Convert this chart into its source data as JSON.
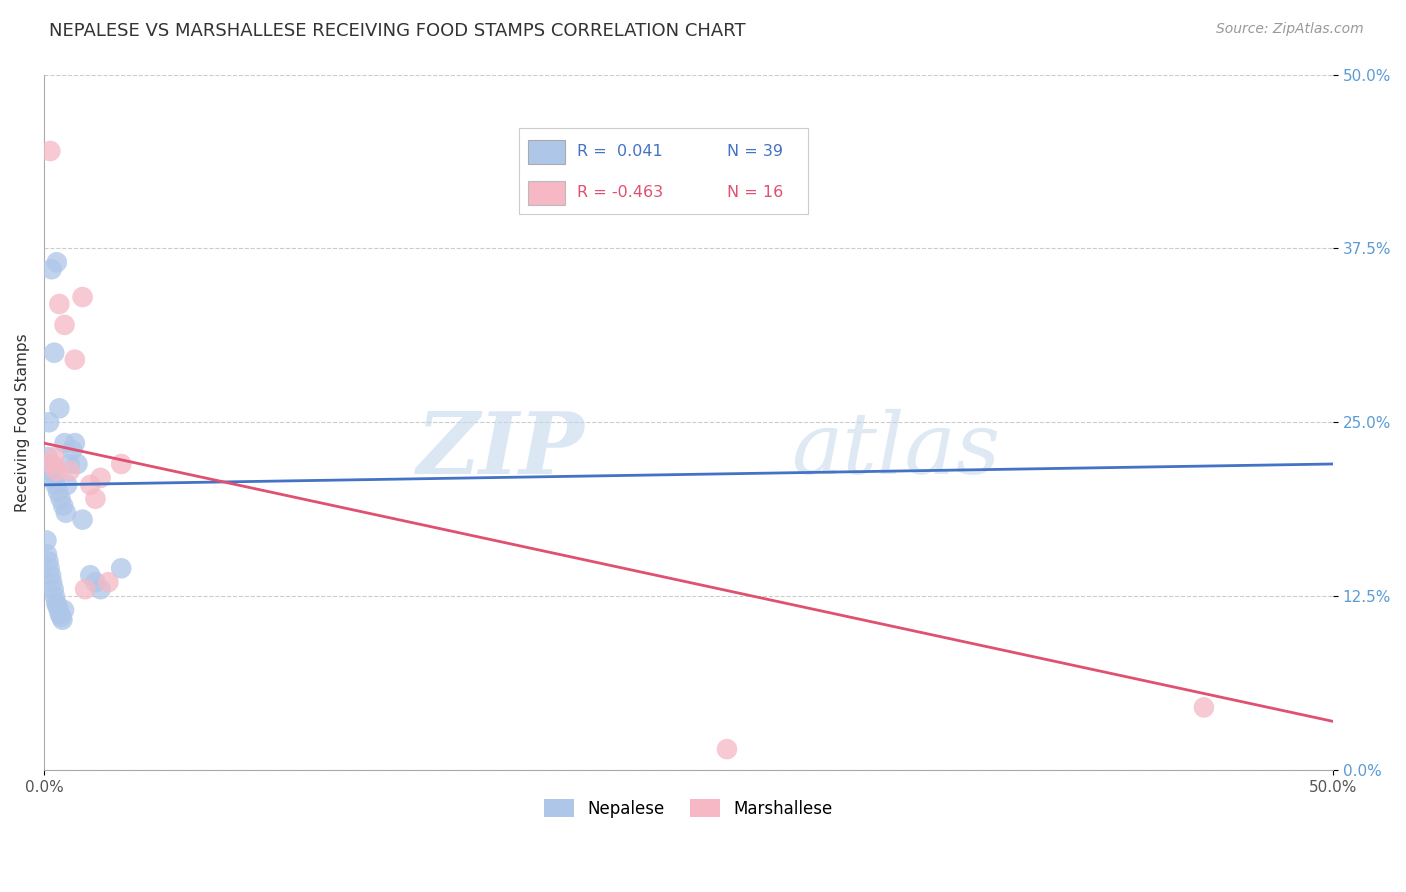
{
  "title": "NEPALESE VS MARSHALLESE RECEIVING FOOD STAMPS CORRELATION CHART",
  "source": "Source: ZipAtlas.com",
  "ylabel": "Receiving Food Stamps",
  "ytick_labels": [
    "0.0%",
    "12.5%",
    "25.0%",
    "37.5%",
    "50.0%"
  ],
  "ytick_values": [
    0.0,
    12.5,
    25.0,
    37.5,
    50.0
  ],
  "xmin": 0.0,
  "xmax": 50.0,
  "ymin": 0.0,
  "ymax": 50.0,
  "legend_r1": "R =  0.041",
  "legend_n1": "N = 39",
  "legend_r2": "R = -0.463",
  "legend_n2": "N = 16",
  "nepalese_x": [
    0.3,
    0.5,
    0.4,
    0.6,
    0.2,
    0.8,
    1.0,
    0.15,
    0.25,
    0.35,
    0.45,
    0.55,
    0.65,
    0.75,
    0.85,
    0.9,
    1.1,
    1.2,
    1.3,
    1.5,
    0.1,
    0.12,
    0.18,
    0.22,
    0.28,
    0.32,
    0.38,
    0.42,
    0.48,
    0.52,
    0.58,
    0.62,
    0.68,
    0.72,
    0.78,
    1.8,
    2.0,
    2.2,
    3.0
  ],
  "nepalese_y": [
    36.0,
    36.5,
    30.0,
    26.0,
    25.0,
    23.5,
    22.0,
    22.5,
    21.5,
    21.0,
    20.5,
    20.0,
    19.5,
    19.0,
    18.5,
    20.5,
    23.0,
    23.5,
    22.0,
    18.0,
    16.5,
    15.5,
    15.0,
    14.5,
    14.0,
    13.5,
    13.0,
    12.5,
    12.0,
    11.8,
    11.5,
    11.2,
    11.0,
    10.8,
    11.5,
    14.0,
    13.5,
    13.0,
    14.5
  ],
  "marshallese_x": [
    0.3,
    0.5,
    0.6,
    0.8,
    1.0,
    1.2,
    1.5,
    1.8,
    2.0,
    2.5,
    3.0,
    2.2,
    0.4,
    1.6,
    26.5,
    45.0
  ],
  "marshallese_y": [
    22.0,
    21.5,
    33.5,
    32.0,
    21.5,
    29.5,
    34.0,
    20.5,
    19.5,
    13.5,
    22.0,
    21.0,
    22.5,
    13.0,
    1.5,
    4.5
  ],
  "marshallese_x_outlier": [
    0.25
  ],
  "marshallese_y_outlier": [
    44.5
  ],
  "nepalese_color": "#aec6e8",
  "marshallese_color": "#f5b8c4",
  "nepalese_line_color": "#4472c4",
  "marshallese_line_color": "#e05070",
  "trendline_nepalese_y_start": 20.5,
  "trendline_nepalese_y_end": 22.0,
  "trendline_marshallese_y_start": 23.5,
  "trendline_marshallese_y_end": 3.5,
  "watermark_zip": "ZIP",
  "watermark_atlas": "atlas",
  "background_color": "#ffffff",
  "grid_color": "#cccccc",
  "bottom_legend_nepalese": "Nepalese",
  "bottom_legend_marshallese": "Marshallese"
}
